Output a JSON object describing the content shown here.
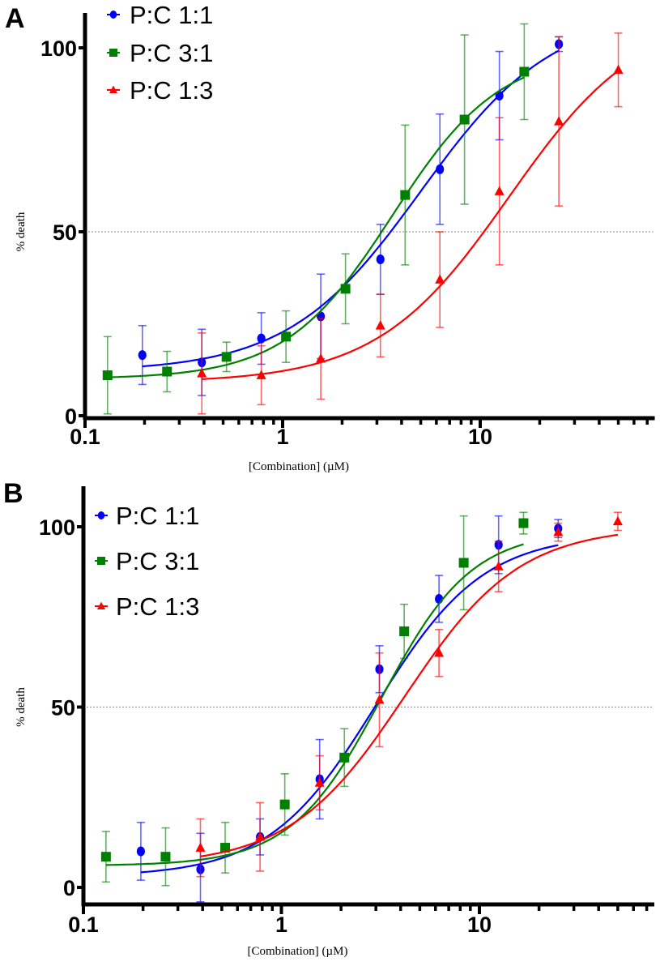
{
  "chart_data": [
    {
      "panel_label": "A",
      "type": "scatter",
      "xlabel": "[Combination] (µM)",
      "ylabel": "% death",
      "xscale": "log",
      "xlim": [
        0.1,
        75
      ],
      "ylim": [
        0,
        100
      ],
      "xtick_labels": [
        "0.1",
        "1",
        "10"
      ],
      "xtick_values": [
        0.1,
        1,
        10
      ],
      "ytick_labels": [
        "0",
        "50",
        "100"
      ],
      "ytick_values": [
        0,
        50,
        100
      ],
      "reference_line_y": 50,
      "legend_position": "top-left",
      "series": [
        {
          "name": "P:C 1:1",
          "color": "#0000ff",
          "marker": "circle",
          "x": [
            0.195,
            0.39,
            0.78,
            1.56,
            3.125,
            6.25,
            12.5,
            25
          ],
          "y": [
            16.5,
            14.5,
            21,
            27,
            42.5,
            67,
            87,
            101
          ],
          "err": [
            8,
            9,
            7,
            11.5,
            9.5,
            15,
            12,
            2
          ],
          "fit": {
            "bottom": 12,
            "top": 110,
            "ec50": 5,
            "hill": 1.3
          }
        },
        {
          "name": "P:C 3:1",
          "color": "#008000",
          "marker": "square",
          "x": [
            0.13,
            0.26,
            0.52,
            1.04,
            2.08,
            4.17,
            8.33,
            16.7
          ],
          "y": [
            11,
            12,
            16,
            21.5,
            34.5,
            60,
            80.5,
            93.5
          ],
          "err": [
            10.5,
            5.5,
            4,
            7,
            9.5,
            19,
            23,
            13
          ],
          "fit": {
            "bottom": 10,
            "top": 99,
            "ec50": 3.6,
            "hill": 1.6
          }
        },
        {
          "name": "P:C 1:3",
          "color": "#ff0000",
          "marker": "triangle",
          "x": [
            0.39,
            0.78,
            1.56,
            3.125,
            6.25,
            12.5,
            25,
            50
          ],
          "y": [
            11.5,
            11,
            15.5,
            24.5,
            37,
            61,
            80,
            94
          ],
          "err": [
            11,
            8,
            11,
            8.5,
            13,
            20,
            23,
            10
          ],
          "fit": {
            "bottom": 9,
            "top": 110,
            "ec50": 14,
            "hill": 1.3
          }
        }
      ]
    },
    {
      "panel_label": "B",
      "type": "scatter",
      "xlabel": "[Combination] (µM)",
      "ylabel": "% death",
      "xscale": "log",
      "xlim": [
        0.1,
        75
      ],
      "ylim": [
        0,
        100
      ],
      "xtick_labels": [
        "0.1",
        "1",
        "10"
      ],
      "xtick_values": [
        0.1,
        1,
        10
      ],
      "ytick_labels": [
        "0",
        "50",
        "100"
      ],
      "ytick_values": [
        0,
        50,
        100
      ],
      "reference_line_y": 50,
      "legend_position": "top-left",
      "series": [
        {
          "name": "P:C 1:1",
          "color": "#0000ff",
          "marker": "circle",
          "x": [
            0.195,
            0.39,
            0.78,
            1.56,
            3.125,
            6.25,
            12.5,
            25
          ],
          "y": [
            10,
            5,
            14,
            30,
            60.5,
            80,
            95,
            99.5
          ],
          "err": [
            8,
            10,
            5,
            11,
            6.5,
            6.5,
            8,
            2.5
          ],
          "fit": {
            "bottom": 3,
            "top": 98,
            "ec50": 3.0,
            "hill": 1.6
          }
        },
        {
          "name": "P:C 3:1",
          "color": "#008000",
          "marker": "square",
          "x": [
            0.13,
            0.26,
            0.52,
            1.04,
            2.08,
            4.17,
            8.33,
            16.7
          ],
          "y": [
            8.5,
            8.5,
            11,
            23,
            36,
            71,
            90,
            101
          ],
          "err": [
            7,
            8,
            7,
            8.5,
            8,
            7.5,
            13,
            3
          ],
          "fit": {
            "bottom": 6,
            "top": 99,
            "ec50": 3.2,
            "hill": 1.9
          }
        },
        {
          "name": "P:C 1:3",
          "color": "#ff0000",
          "marker": "triangle",
          "x": [
            0.39,
            0.78,
            1.56,
            3.125,
            6.25,
            12.5,
            25,
            50
          ],
          "y": [
            11,
            14,
            29,
            52,
            65,
            89,
            98.5,
            101.5
          ],
          "err": [
            8,
            9.5,
            7.5,
            13,
            6.5,
            7,
            2.5,
            2.5
          ],
          "fit": {
            "bottom": 6,
            "top": 100,
            "ec50": 4.2,
            "hill": 1.5
          }
        }
      ]
    }
  ]
}
